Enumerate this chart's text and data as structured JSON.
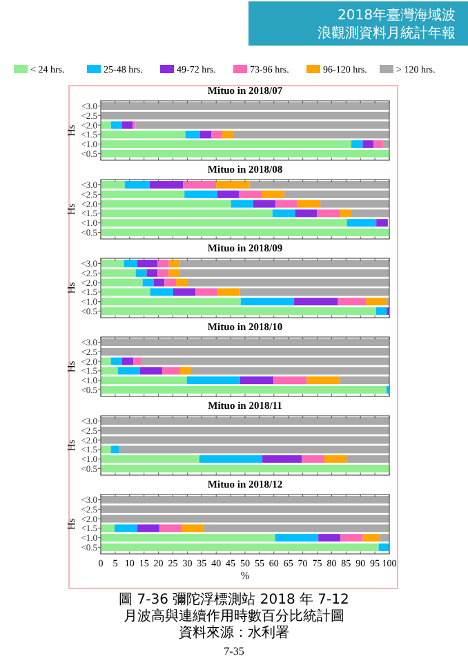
{
  "chart_data": [
    {
      "type": "bar",
      "orientation": "horizontal",
      "stacked": true,
      "title": "Mituo in 2018/07",
      "ylabel": "Hs",
      "categories": [
        "<3.0",
        "<2.5",
        "<2.0",
        "<1.5",
        "<1.0",
        "<0.5"
      ],
      "xlim": [
        0,
        100
      ],
      "xticks": [
        0,
        5,
        10,
        15,
        20,
        25,
        30,
        35,
        40,
        45,
        50,
        55,
        60,
        65,
        70,
        75,
        80,
        85,
        90,
        95,
        100
      ],
      "tick_labels": "y",
      "legend": "top",
      "annotations": [
        "2018年臺灣海域波浪觀測資料月統計年報"
      ],
      "series": [
        {
          "name": "< 24 hrs.",
          "color": "#90ee90",
          "values": [
            0,
            0,
            3.5,
            29.3,
            86.8,
            100
          ]
        },
        {
          "name": "25-48 hrs.",
          "color": "#00bfff",
          "values": [
            0,
            0,
            3.8,
            5,
            4,
            0
          ]
        },
        {
          "name": "49-72 hrs.",
          "color": "#8a2be2",
          "values": [
            0,
            0,
            3.8,
            4,
            3.8,
            0
          ]
        },
        {
          "name": "73-96 hrs.",
          "color": "#ff69b4",
          "values": [
            0,
            0,
            1,
            3.8,
            3.2,
            0
          ]
        },
        {
          "name": "96-120 hrs.",
          "color": "#ffa500",
          "values": [
            0,
            0,
            0,
            3.8,
            0,
            0
          ]
        },
        {
          "name": "> 120 hrs.",
          "color": "#a9a9a9",
          "values": [
            100,
            100,
            87.9,
            54.1,
            2.2,
            0
          ]
        }
      ]
    },
    {
      "type": "bar",
      "orientation": "horizontal",
      "stacked": true,
      "title": "Mituo in 2018/08",
      "ylabel": "Hs",
      "categories": [
        "<3.0",
        "<2.5",
        "<2.0",
        "<1.5",
        "<1.0",
        "<0.5"
      ],
      "xlim": [
        0,
        100
      ],
      "xticks": [
        0,
        5,
        10,
        15,
        20,
        25,
        30,
        35,
        40,
        45,
        50,
        55,
        60,
        65,
        70,
        75,
        80,
        85,
        90,
        95,
        100
      ],
      "tick_labels": "y",
      "series": [
        {
          "color": "#90ee90",
          "values": [
            8.3,
            29,
            45.1,
            59.5,
            85.3,
            100
          ]
        },
        {
          "color": "#00bfff",
          "values": [
            8.6,
            11.3,
            7.7,
            7.8,
            10.2,
            0
          ]
        },
        {
          "color": "#8a2be2",
          "values": [
            11.6,
            7.7,
            7.8,
            7.7,
            4,
            0
          ]
        },
        {
          "color": "#ff69b4",
          "values": [
            11.5,
            7.8,
            7.7,
            7.8,
            0,
            0
          ]
        },
        {
          "color": "#ffa500",
          "values": [
            11.5,
            7.8,
            7.8,
            4,
            0,
            0
          ]
        },
        {
          "color": "#a9a9a9",
          "values": [
            48.5,
            36.4,
            23.9,
            13.2,
            null,
            0
          ]
        }
      ]
    },
    {
      "type": "bar",
      "orientation": "horizontal",
      "stacked": true,
      "title": "Mituo in 2018/09",
      "ylabel": "Hs",
      "categories": [
        "<3.0",
        "<2.5",
        "<2.0",
        "<1.5",
        "<1.0",
        "<0.5"
      ],
      "xlim": [
        0,
        100
      ],
      "xticks": [
        0,
        5,
        10,
        15,
        20,
        25,
        30,
        35,
        40,
        45,
        50,
        55,
        60,
        65,
        70,
        75,
        80,
        85,
        90,
        95,
        100
      ],
      "tick_labels": "y",
      "series": [
        {
          "color": "#90ee90",
          "values": [
            8,
            12.1,
            14.5,
            17.1,
            48.5,
            95.4
          ]
        },
        {
          "color": "#00bfff",
          "values": [
            4.6,
            3.8,
            3.8,
            8,
            18.5,
            3.7
          ]
        },
        {
          "color": "#8a2be2",
          "values": [
            7,
            3.8,
            3.8,
            7.7,
            15.2,
            0.9
          ]
        },
        {
          "color": "#ff69b4",
          "values": [
            4,
            3.8,
            4,
            7.7,
            9.7,
            0
          ]
        },
        {
          "color": "#ffa500",
          "values": [
            3.8,
            3.8,
            3.8,
            7.7,
            7.2,
            0
          ]
        },
        {
          "color": "#a9a9a9",
          "values": [
            72.6,
            72.7,
            70.1,
            51.8,
            0.9,
            0
          ]
        }
      ]
    },
    {
      "type": "bar",
      "orientation": "horizontal",
      "stacked": true,
      "title": "Mituo in 2018/10",
      "ylabel": "Hs",
      "categories": [
        "<3.0",
        "<2.5",
        "<2.0",
        "<1.5",
        "<1.0",
        "<0.5"
      ],
      "xlim": [
        0,
        100
      ],
      "xticks": [
        0,
        5,
        10,
        15,
        20,
        25,
        30,
        35,
        40,
        45,
        50,
        55,
        60,
        65,
        70,
        75,
        80,
        85,
        90,
        95,
        100
      ],
      "tick_labels": "y",
      "series": [
        {
          "color": "#90ee90",
          "values": [
            0,
            0,
            3.5,
            5.9,
            29.8,
            99
          ]
        },
        {
          "color": "#00bfff",
          "values": [
            0,
            0,
            3.8,
            7.7,
            18.5,
            1
          ]
        },
        {
          "color": "#8a2be2",
          "values": [
            0,
            0,
            4,
            7.7,
            11.6,
            0
          ]
        },
        {
          "color": "#ff69b4",
          "values": [
            0,
            0,
            3,
            6.2,
            11.5,
            0
          ]
        },
        {
          "color": "#ffa500",
          "values": [
            0,
            0,
            0,
            3.8,
            11.5,
            0
          ]
        },
        {
          "color": "#a9a9a9",
          "values": [
            100,
            100,
            85.7,
            68.7,
            17.1,
            0
          ]
        }
      ]
    },
    {
      "type": "bar",
      "orientation": "horizontal",
      "stacked": true,
      "title": "Mituo in 2018/11",
      "ylabel": "Hs",
      "categories": [
        "<3.0",
        "<2.5",
        "<2.0",
        "<1.5",
        "<1.0",
        "<0.5"
      ],
      "xlim": [
        0,
        100
      ],
      "xticks": [
        0,
        5,
        10,
        15,
        20,
        25,
        30,
        35,
        40,
        45,
        50,
        55,
        60,
        65,
        70,
        75,
        80,
        85,
        90,
        95,
        100
      ],
      "tick_labels": "y",
      "series": [
        {
          "color": "#90ee90",
          "values": [
            0,
            0,
            0,
            3.5,
            34.1,
            100
          ]
        },
        {
          "color": "#00bfff",
          "values": [
            0,
            0,
            0,
            2.9,
            21.9,
            0
          ]
        },
        {
          "color": "#8a2be2",
          "values": [
            0,
            0,
            0,
            0,
            13.7,
            0
          ]
        },
        {
          "color": "#ff69b4",
          "values": [
            0,
            0,
            0,
            0,
            7.8,
            0
          ]
        },
        {
          "color": "#ffa500",
          "values": [
            0,
            0,
            0,
            0,
            7.7,
            0
          ]
        },
        {
          "color": "#a9a9a9",
          "values": [
            100,
            100,
            100,
            93.6,
            14.8,
            0
          ]
        }
      ]
    },
    {
      "type": "bar",
      "orientation": "horizontal",
      "stacked": true,
      "title": "Mituo in 2018/12",
      "ylabel": "Hs",
      "xlabel": "%",
      "categories": [
        "<3.0",
        "<2.5",
        "<2.0",
        "<1.5",
        "<1.0",
        "<0.5"
      ],
      "xlim": [
        0,
        100
      ],
      "xticks": [
        0,
        5,
        10,
        15,
        20,
        25,
        30,
        35,
        40,
        45,
        50,
        55,
        60,
        65,
        70,
        75,
        80,
        85,
        90,
        95,
        100
      ],
      "annotations": [
        "圖 7-36 彌陀浮標測站 2018 年 7-12 月波高與連續作用時數百分比統計圖",
        "資料來源：水利署",
        "7-35"
      ],
      "series": [
        {
          "color": "#90ee90",
          "values": [
            0,
            0,
            0,
            4.8,
            60.4,
            96.3
          ]
        },
        {
          "color": "#00bfff",
          "values": [
            0,
            0,
            0,
            7.8,
            15,
            3.7
          ]
        },
        {
          "color": "#8a2be2",
          "values": [
            0,
            0,
            0,
            7.7,
            7.7,
            0
          ]
        },
        {
          "color": "#ff69b4",
          "values": [
            0,
            0,
            0,
            7.7,
            7.7,
            0
          ]
        },
        {
          "color": "#ffa500",
          "values": [
            0,
            0,
            0,
            7.8,
            5.9,
            0
          ]
        },
        {
          "color": "#a9a9a9",
          "values": [
            100,
            100,
            100,
            64.2,
            3.3,
            0
          ]
        }
      ]
    }
  ]
}
